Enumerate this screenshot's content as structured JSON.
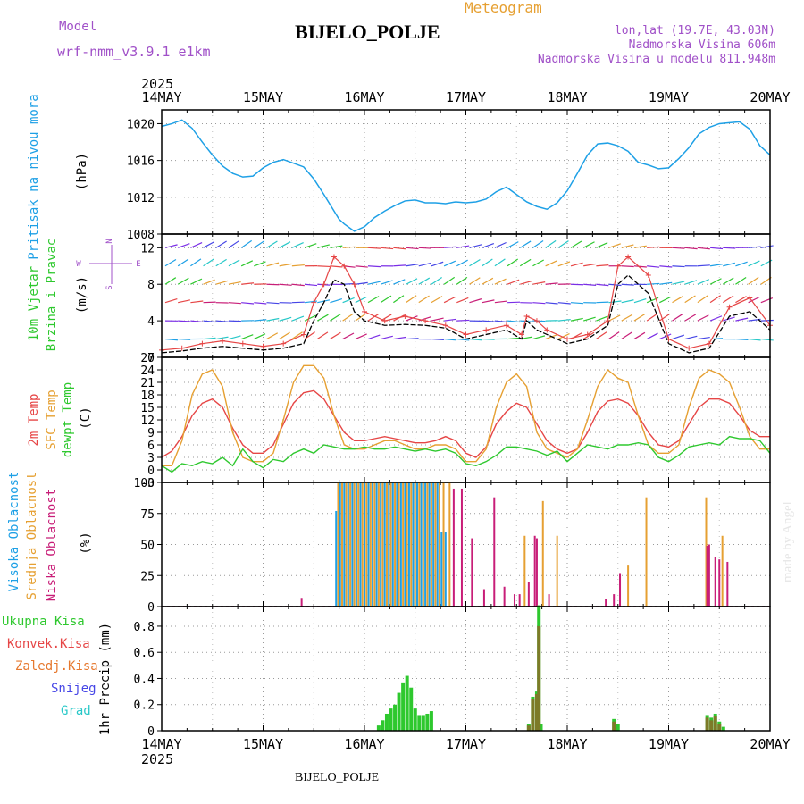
{
  "header": {
    "model_label": "Model",
    "model_name": "wrf-nmm_v3.9.1 e1km",
    "meteogram": "Meteogram",
    "title": "BIJELO_POLJE",
    "coords": "lon,lat (19.7E, 43.03N)",
    "elevation": "Nadmorska Visina 606m",
    "model_elevation": "Nadmorska Visina u modelu 811.948m",
    "footer_title": "BIJELO_POLJE",
    "credit": "made by Angel"
  },
  "colors": {
    "pressure": "#1ea0e6",
    "wind_speed": "#000000",
    "wind_gust": "#e64646",
    "t2m": "#e64646",
    "sfc": "#e6a032",
    "dew": "#2ec82e",
    "high_cloud": "#1ea0e6",
    "mid_cloud": "#e6a032",
    "low_cloud": "#c81e78",
    "total_precip": "#2ec82e",
    "conv_precip": "#e64646",
    "frozen_precip": "#e6782e",
    "snow": "#4646e6",
    "graupel": "#28c8c8",
    "purple": "#a050c8"
  },
  "time_axis": {
    "year": "2025",
    "ticks": [
      "14MAY",
      "15MAY",
      "16MAY",
      "17MAY",
      "18MAY",
      "19MAY",
      "20MAY"
    ]
  },
  "chart_data": [
    {
      "type": "line",
      "panel": "pressure",
      "ylabel_main": "Pritisak na nivou mora",
      "ylabel_unit": "(hPa)",
      "ylim": [
        1008,
        1021.5
      ],
      "yticks": [
        "1008",
        "1012",
        "1016",
        "1020"
      ],
      "x_days": [
        0,
        0.1,
        0.2,
        0.3,
        0.4,
        0.5,
        0.6,
        0.7,
        0.8,
        0.9,
        1.0,
        1.1,
        1.2,
        1.3,
        1.4,
        1.5,
        1.6,
        1.7,
        1.75,
        1.8,
        1.9,
        2.0,
        2.1,
        2.2,
        2.3,
        2.4,
        2.5,
        2.6,
        2.7,
        2.8,
        2.9,
        3.0,
        3.1,
        3.2,
        3.3,
        3.4,
        3.5,
        3.6,
        3.7,
        3.8,
        3.9,
        4.0,
        4.1,
        4.2,
        4.3,
        4.4,
        4.5,
        4.6,
        4.7,
        4.8,
        4.9,
        5.0,
        5.1,
        5.2,
        5.3,
        5.4,
        5.5,
        5.6,
        5.7,
        5.8,
        5.9,
        6.0
      ],
      "series": [
        {
          "values": [
            1019.7,
            1020,
            1020.4,
            1019.5,
            1018,
            1016.6,
            1015.4,
            1014.6,
            1014.2,
            1014.3,
            1015.2,
            1015.8,
            1016.1,
            1015.7,
            1015.3,
            1014,
            1012.3,
            1010.5,
            1009.6,
            1009.1,
            1008.3,
            1008.8,
            1009.8,
            1010.5,
            1011.1,
            1011.6,
            1011.7,
            1011.4,
            1011.4,
            1011.3,
            1011.5,
            1011.4,
            1011.5,
            1011.8,
            1012.6,
            1013.1,
            1012.3,
            1011.5,
            1011.0,
            1010.7,
            1011.4,
            1012.7,
            1014.6,
            1016.6,
            1017.8,
            1017.9,
            1017.6,
            1017.0,
            1015.8,
            1015.5,
            1015.1,
            1015.2,
            1016.2,
            1017.4,
            1018.9,
            1019.6,
            1020.0,
            1020.1,
            1020.2,
            1019.4,
            1017.6,
            1016.6
          ]
        }
      ]
    },
    {
      "type": "line",
      "panel": "wind",
      "ylabel_main": "10m Vjetar",
      "ylabel_sub": "Brzina i Pravac",
      "ylabel_unit": "(m/s)",
      "compass": {
        "n": "N",
        "e": "E",
        "w": "W",
        "s": "S"
      },
      "ylim": [
        0,
        13.5
      ],
      "yticks": [
        "0",
        "4",
        "8",
        "12"
      ],
      "x_days": [
        0,
        0.2,
        0.4,
        0.6,
        0.8,
        1.0,
        1.2,
        1.4,
        1.5,
        1.6,
        1.7,
        1.8,
        1.9,
        2.0,
        2.2,
        2.4,
        2.6,
        2.8,
        3.0,
        3.2,
        3.4,
        3.55,
        3.6,
        3.7,
        3.8,
        4.0,
        4.2,
        4.4,
        4.5,
        4.6,
        4.8,
        5.0,
        5.2,
        5.4,
        5.6,
        5.8,
        6.0
      ],
      "series": [
        {
          "values": [
            0.5,
            0.7,
            1.0,
            1.2,
            1.0,
            0.8,
            1.0,
            1.5,
            4,
            6,
            8.5,
            8,
            5,
            4,
            3.5,
            3.6,
            3.5,
            3.2,
            2.0,
            2.5,
            3.0,
            2.0,
            4.0,
            3.0,
            2.5,
            1.5,
            2.0,
            3.5,
            8.0,
            9.0,
            7.0,
            1.5,
            0.5,
            1.0,
            4.5,
            5.0,
            3.0
          ]
        },
        {
          "values": [
            0.8,
            1.0,
            1.5,
            1.8,
            1.5,
            1.2,
            1.5,
            2.5,
            6,
            8,
            11,
            10,
            8,
            5,
            4,
            4.5,
            4.0,
            3.5,
            2.5,
            3.0,
            3.5,
            2.5,
            4.5,
            4.0,
            3.0,
            2.0,
            2.5,
            4.0,
            10.0,
            11.0,
            9.0,
            2.0,
            1.0,
            1.5,
            5.5,
            6.5,
            3.5
          ]
        }
      ]
    },
    {
      "type": "line",
      "panel": "temperature",
      "ylabel_main": "2m Temp",
      "ylabel_sub": "SFC Temp",
      "ylabel_sub2": "dewpt Temp",
      "ylabel_unit": "(C)",
      "ylim": [
        -3,
        27
      ],
      "yticks": [
        "-3",
        "0",
        "3",
        "6",
        "9",
        "12",
        "15",
        "18",
        "21",
        "24",
        "27"
      ],
      "x_days": [
        0,
        0.1,
        0.2,
        0.3,
        0.4,
        0.5,
        0.6,
        0.7,
        0.8,
        0.9,
        1.0,
        1.1,
        1.2,
        1.3,
        1.4,
        1.5,
        1.6,
        1.7,
        1.8,
        1.9,
        2.0,
        2.1,
        2.2,
        2.3,
        2.4,
        2.5,
        2.6,
        2.7,
        2.8,
        2.9,
        3.0,
        3.1,
        3.2,
        3.3,
        3.4,
        3.5,
        3.6,
        3.7,
        3.8,
        3.9,
        4.0,
        4.1,
        4.2,
        4.3,
        4.4,
        4.5,
        4.6,
        4.7,
        4.8,
        4.9,
        5.0,
        5.1,
        5.2,
        5.3,
        5.4,
        5.5,
        5.6,
        5.7,
        5.8,
        5.9,
        6.0
      ],
      "series": [
        {
          "values": [
            3,
            4.5,
            8,
            13,
            16,
            17,
            15,
            10,
            6,
            4,
            4,
            6,
            11,
            16,
            18.5,
            19,
            17,
            13,
            9,
            7,
            7,
            7.5,
            8,
            7.5,
            7,
            6.5,
            6.5,
            7,
            8,
            7,
            4,
            3,
            5.5,
            11,
            14,
            16,
            15,
            11,
            7,
            5,
            4,
            5,
            9,
            14,
            16.5,
            17,
            16,
            13,
            9,
            6,
            5.5,
            7,
            11,
            15,
            17,
            17,
            16,
            13,
            9.5,
            8,
            8
          ]
        },
        {
          "values": [
            1,
            1,
            7,
            18,
            23,
            24,
            20,
            9,
            3,
            2,
            2,
            4,
            12,
            21,
            25,
            25,
            22,
            13,
            6,
            5,
            5,
            6,
            7,
            7,
            6,
            5,
            5,
            6,
            6,
            5,
            2,
            2,
            5,
            15,
            21,
            23,
            20,
            9,
            5,
            4,
            3,
            5,
            12,
            20,
            24,
            22,
            21,
            13,
            6,
            4,
            4,
            6,
            15,
            22,
            24,
            23,
            21,
            15,
            8,
            5,
            5
          ]
        },
        {
          "values": [
            1,
            -0.5,
            1.5,
            1,
            2,
            1.5,
            3,
            1,
            5,
            2,
            0.5,
            2.5,
            2,
            4,
            5,
            4,
            6,
            5.5,
            5,
            5,
            5.5,
            5,
            5,
            5.5,
            5,
            4.5,
            5,
            4.5,
            5,
            4,
            1.5,
            1,
            2,
            3.5,
            5.5,
            5.5,
            5,
            4.5,
            3.5,
            4.5,
            2,
            4,
            6,
            5.5,
            5,
            6,
            6,
            6.5,
            6,
            3,
            2,
            3.5,
            5.5,
            6,
            6.5,
            6,
            8,
            7.5,
            7.5,
            7,
            4
          ]
        }
      ]
    },
    {
      "type": "bar",
      "panel": "cloud",
      "ylabel_main": "Visoka Oblacnost",
      "ylabel_sub": "Srednja Oblacnost",
      "ylabel_sub2": "Niska Oblacnost",
      "ylabel_unit": "(%)",
      "ylim": [
        0,
        100
      ],
      "yticks": [
        "0",
        "25",
        "50",
        "75",
        "100"
      ],
      "series": [
        {
          "name": "Visoka Oblacnost",
          "x_days": [
            1.72,
            1.76,
            1.8,
            1.84,
            1.88,
            1.92,
            1.96,
            2.0,
            2.04,
            2.08,
            2.12,
            2.16,
            2.2,
            2.24,
            2.28,
            2.32,
            2.36,
            2.4,
            2.44,
            2.48,
            2.52,
            2.56,
            2.6,
            2.64,
            2.68,
            2.72,
            2.76,
            2.8
          ],
          "values": [
            77,
            100,
            100,
            100,
            100,
            100,
            100,
            100,
            100,
            100,
            100,
            100,
            100,
            100,
            100,
            100,
            100,
            100,
            100,
            100,
            100,
            100,
            100,
            100,
            100,
            100,
            60,
            60
          ]
        },
        {
          "name": "Srednja Oblacnost",
          "x_days": [
            1.74,
            1.78,
            1.82,
            1.86,
            1.9,
            1.94,
            1.98,
            2.02,
            2.06,
            2.1,
            2.14,
            2.18,
            2.22,
            2.26,
            2.3,
            2.34,
            2.38,
            2.42,
            2.46,
            2.5,
            2.54,
            2.58,
            2.62,
            2.66,
            2.7,
            2.74,
            2.78,
            2.84,
            3.58,
            3.76,
            3.9,
            4.6,
            4.78,
            5.37,
            5.53
          ],
          "values": [
            100,
            100,
            100,
            100,
            100,
            100,
            100,
            100,
            100,
            100,
            100,
            100,
            100,
            100,
            100,
            100,
            100,
            100,
            100,
            100,
            100,
            100,
            100,
            100,
            100,
            100,
            100,
            100,
            57,
            85,
            57,
            33,
            88,
            88,
            57
          ]
        },
        {
          "name": "Niska Oblacnost",
          "x_days": [
            1.38,
            2.88,
            2.96,
            3.06,
            3.18,
            3.28,
            3.38,
            3.48,
            3.53,
            3.62,
            3.68,
            3.7,
            3.82,
            4.38,
            4.46,
            4.52,
            5.38,
            5.4,
            5.46,
            5.5,
            5.58
          ],
          "values": [
            7,
            95,
            95,
            55,
            14,
            88,
            16,
            10,
            10,
            20,
            57,
            55,
            10,
            6,
            10,
            27,
            49,
            50,
            40,
            38,
            36
          ]
        }
      ]
    },
    {
      "type": "bar",
      "panel": "precip",
      "ylabel_main": "Ukupna Kisa",
      "ylabel_sub": "Konvek.Kisa",
      "ylabel_sub2": "Zaledj.Kisa",
      "ylabel_sub3": "Snijeg",
      "ylabel_sub4": "Grad",
      "ylabel_unit": "1hr Precip (mm)",
      "ylim": [
        0,
        0.95
      ],
      "yticks": [
        "0",
        "0.2",
        "0.4",
        "0.6",
        "0.8"
      ],
      "series": [
        {
          "name": "Ukupna Kisa",
          "x_days": [
            2.14,
            2.18,
            2.22,
            2.26,
            2.3,
            2.34,
            2.38,
            2.42,
            2.46,
            2.5,
            2.54,
            2.58,
            2.62,
            2.66,
            3.62,
            3.66,
            3.7,
            3.72,
            3.74,
            4.46,
            4.5,
            5.38,
            5.42,
            5.46,
            5.5,
            5.54
          ],
          "values": [
            0.04,
            0.08,
            0.13,
            0.17,
            0.2,
            0.29,
            0.37,
            0.42,
            0.33,
            0.17,
            0.12,
            0.12,
            0.13,
            0.15,
            0.05,
            0.26,
            0.3,
            0.96,
            0.05,
            0.09,
            0.05,
            0.12,
            0.1,
            0.13,
            0.07,
            0.03
          ]
        },
        {
          "name": "Konvek.Kisa",
          "x_days": [
            3.62,
            3.66,
            3.7,
            3.72,
            4.46,
            5.38,
            5.42,
            5.46,
            5.5
          ],
          "values": [
            0.04,
            0.24,
            0.28,
            0.8,
            0.07,
            0.1,
            0.08,
            0.11,
            0.05
          ]
        }
      ]
    }
  ]
}
